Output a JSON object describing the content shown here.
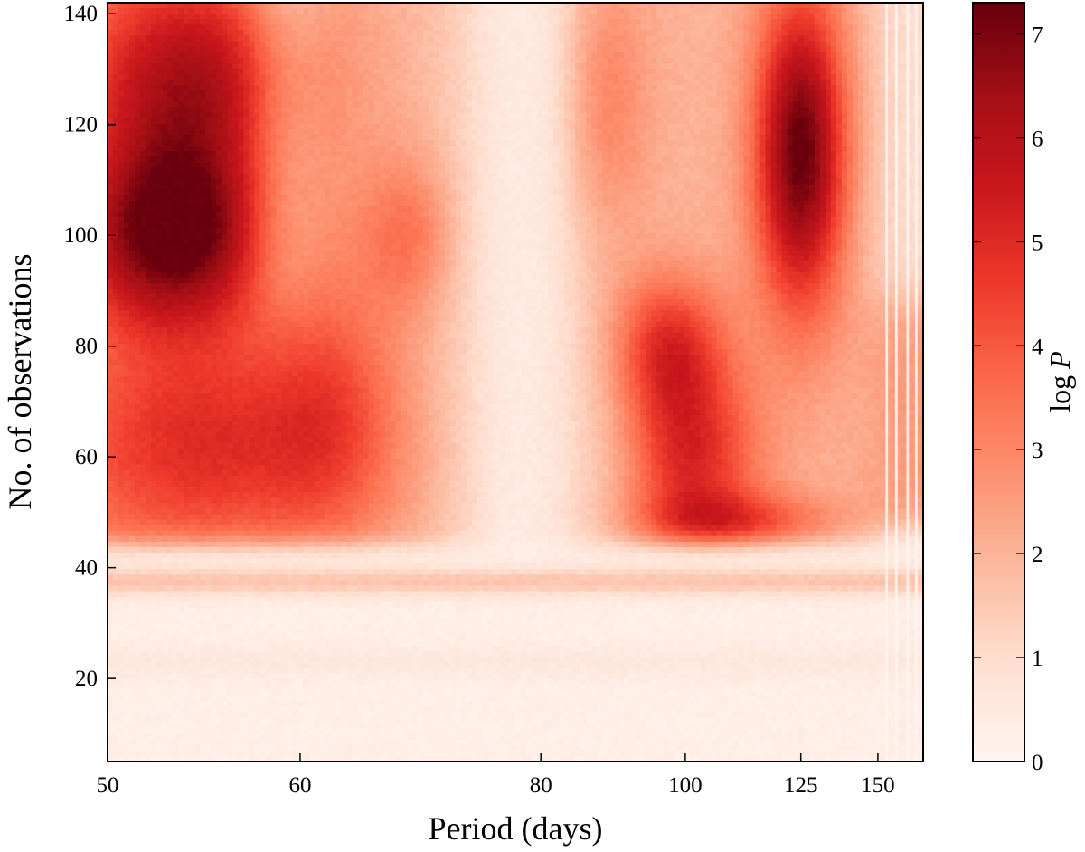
{
  "chart_data": {
    "type": "heatmap",
    "xlabel": "Period (days)",
    "ylabel": "No. of observations",
    "colorbar_label_prefix": "log",
    "colorbar_label_symbol": "P",
    "x_scale": "reciprocal",
    "x_range": [
      50,
      170
    ],
    "x_ticks": [
      50,
      60,
      80,
      100,
      125,
      150
    ],
    "x_tick_labels": [
      "50",
      "60",
      "80",
      "100",
      "125",
      "150"
    ],
    "y_range": [
      5,
      142
    ],
    "y_ticks": [
      20,
      40,
      60,
      80,
      100,
      120,
      140
    ],
    "y_tick_labels": [
      "20",
      "40",
      "60",
      "80",
      "100",
      "120",
      "140"
    ],
    "colorbar_range": [
      0,
      7.3
    ],
    "colorbar_ticks": [
      0,
      1,
      2,
      3,
      4,
      5,
      6,
      7
    ],
    "colorbar_tick_labels": [
      "0",
      "1",
      "2",
      "3",
      "4",
      "5",
      "6",
      "7"
    ],
    "colormap": [
      "#fff5f0",
      "#fee0d2",
      "#fcbba1",
      "#fc9272",
      "#fb6a4a",
      "#ef3b2c",
      "#cb181d",
      "#a50f15",
      "#67000d"
    ],
    "grid": false,
    "features": [
      {
        "description": "lower region, N below ~44",
        "log_p_level": 0.3
      },
      {
        "description": "band near N ~ 36-40",
        "log_p_level": 1.3
      },
      {
        "description": "peak",
        "period_days": 53,
        "n_obs": 100,
        "log_p": 6.6
      },
      {
        "description": "peak",
        "period_days": 101,
        "n_obs": 60,
        "log_p": 5.6
      },
      {
        "description": "peak",
        "period_days": 97,
        "n_obs": 80,
        "log_p": 5.0
      },
      {
        "description": "peak",
        "period_days": 125,
        "n_obs": 106,
        "log_p": 7.2
      },
      {
        "description": "peak",
        "period_days": 110,
        "n_obs": 48,
        "log_p": 4.8
      },
      {
        "description": "low-power gap",
        "period_days": 78,
        "n_obs": 70,
        "log_p": 0.2
      }
    ]
  }
}
